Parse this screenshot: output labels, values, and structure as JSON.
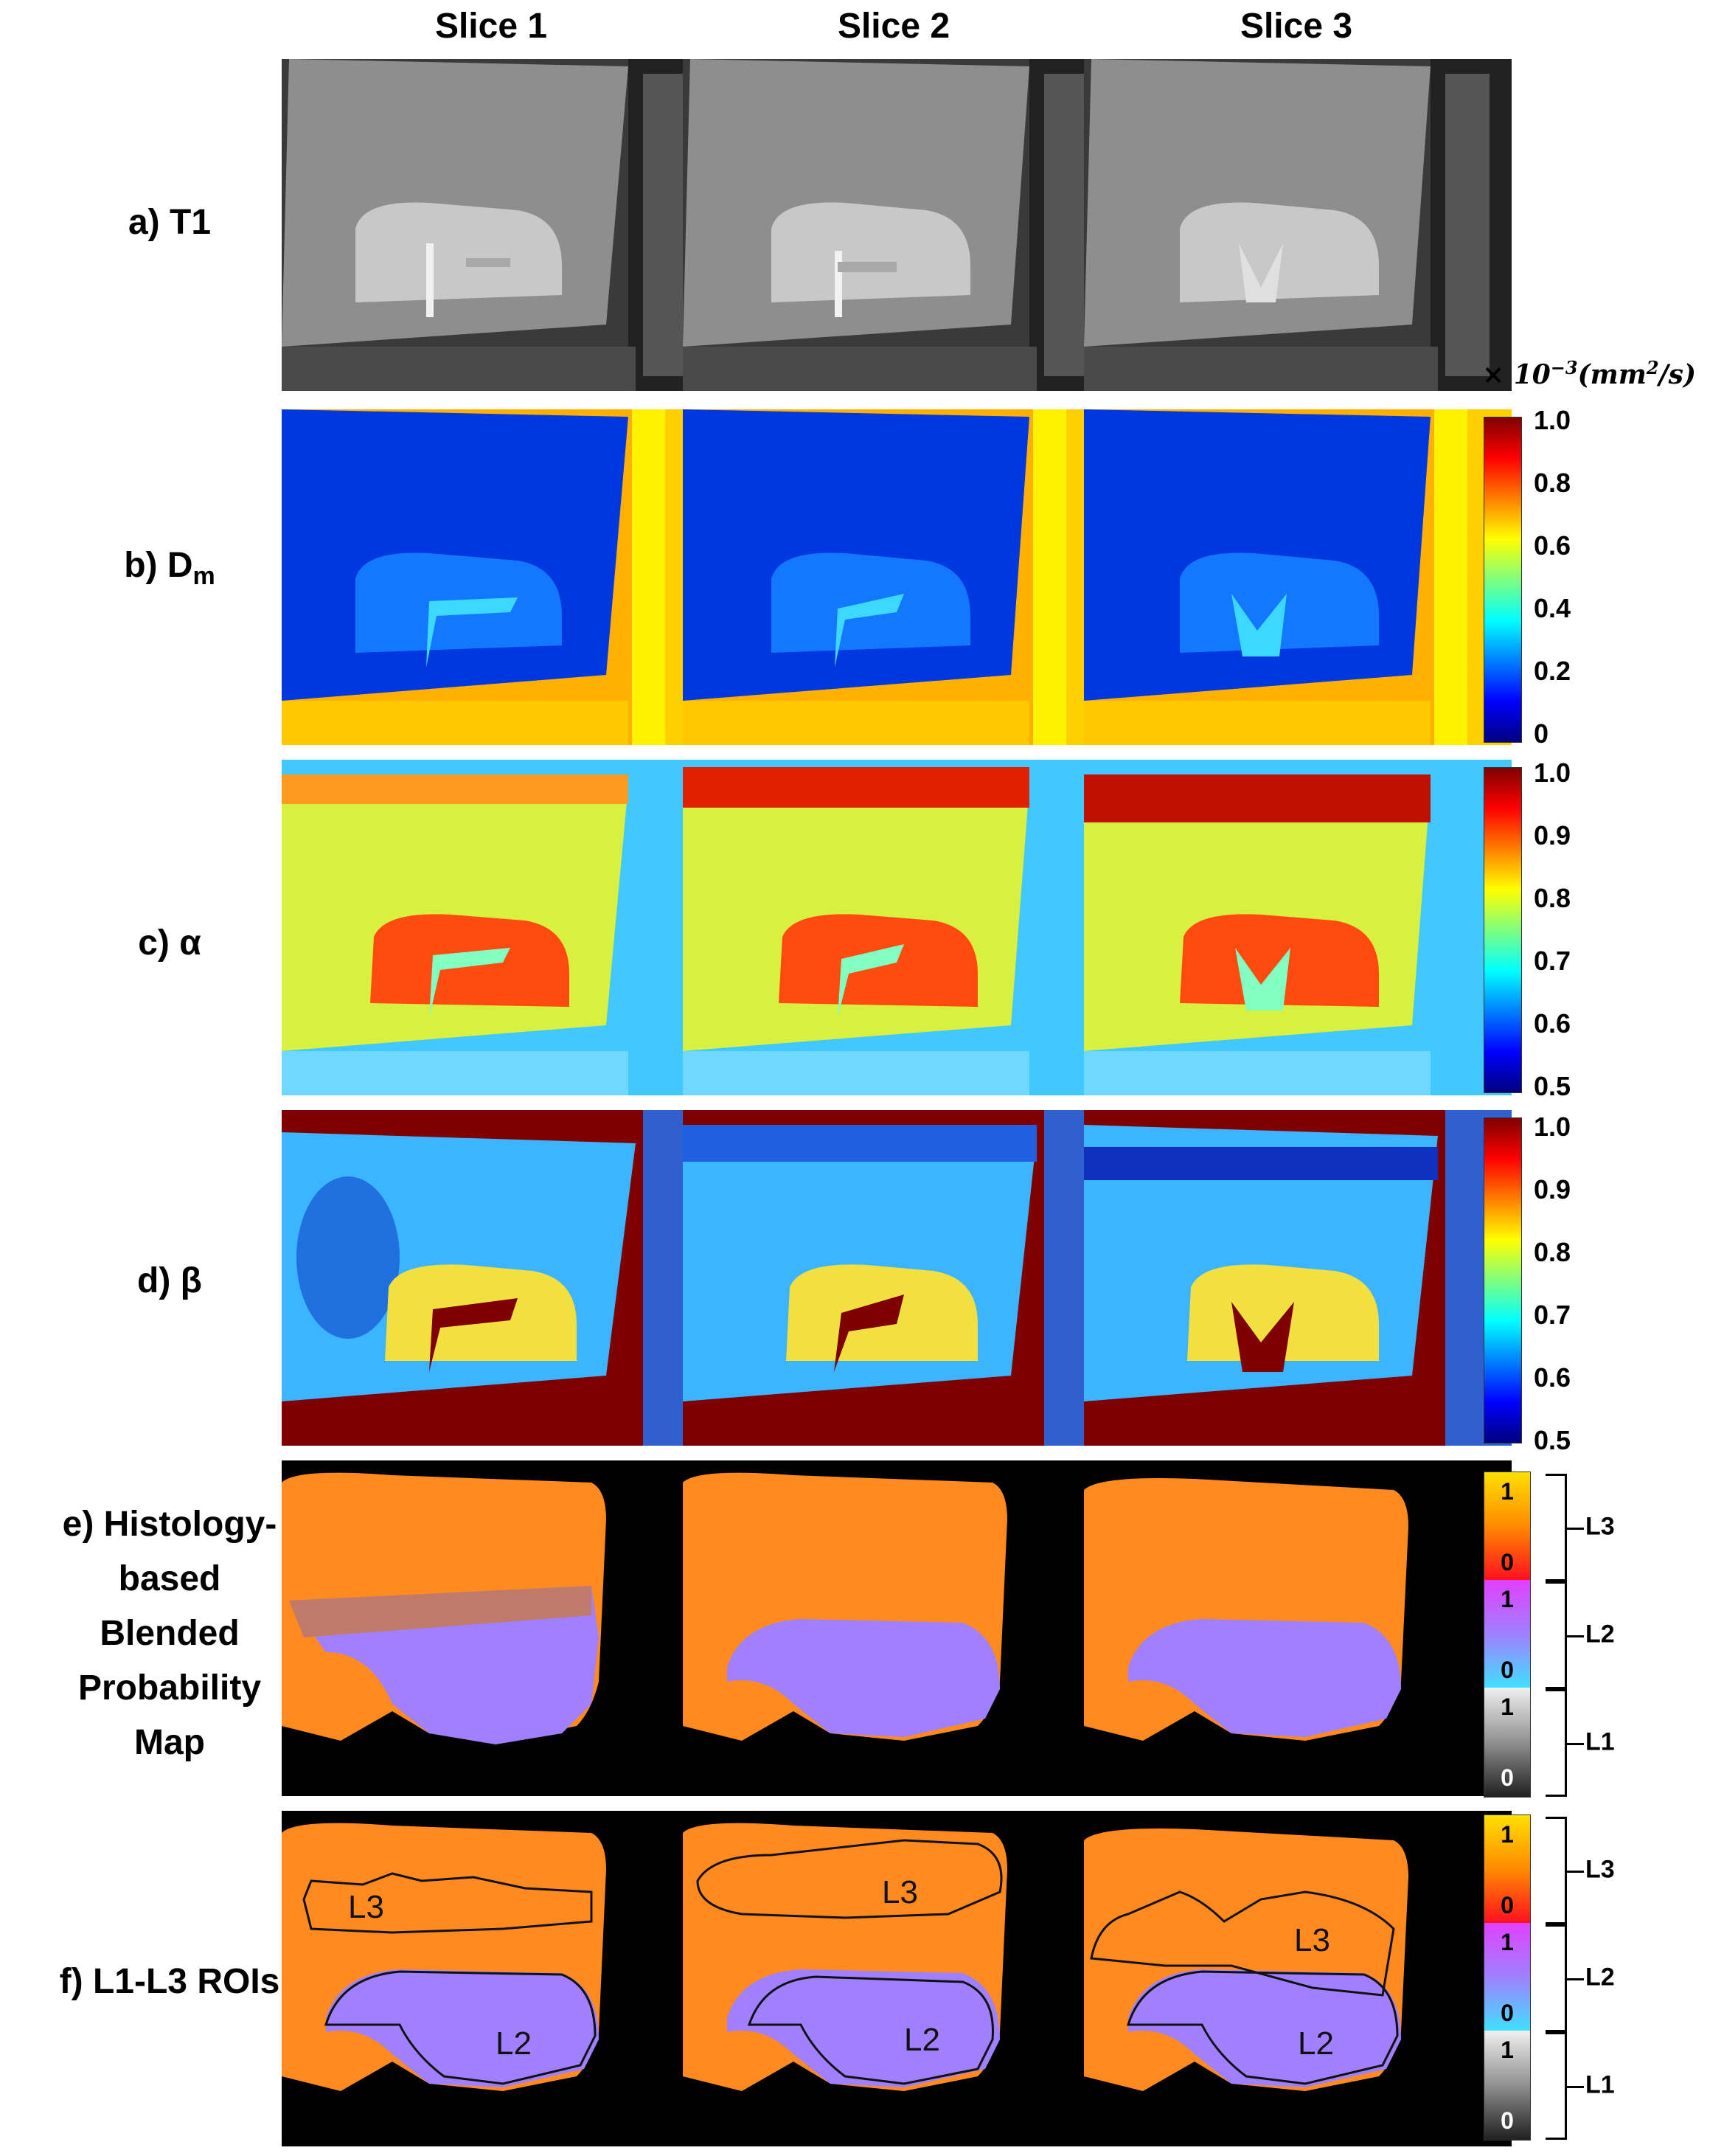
{
  "columns": [
    "Slice 1",
    "Slice 2",
    "Slice 3"
  ],
  "rows": {
    "a": {
      "prefix": "a) T1"
    },
    "b": {
      "prefix": "b) D",
      "sub": "m"
    },
    "c": {
      "prefix": "c) α"
    },
    "d": {
      "prefix": "d) β"
    },
    "e": {
      "line1": "e) Histology-",
      "line2": "based",
      "line3": "Blended",
      "line4": "Probability",
      "line5": "Map"
    },
    "f": {
      "prefix": "f) L1-L3 ROIs"
    }
  },
  "colorbars": {
    "unit": {
      "times": "× 10",
      "exp": "−3",
      "rest": "(mm",
      "exp2": "2",
      "tail": "/s)"
    },
    "dm_ticks": [
      "1.0",
      "0.8",
      "0.6",
      "0.4",
      "0.2",
      "0"
    ],
    "alpha_ticks": [
      "1.0",
      "0.9",
      "0.8",
      "0.7",
      "0.6",
      "0.5"
    ],
    "beta_ticks": [
      "1.0",
      "0.9",
      "0.8",
      "0.7",
      "0.6",
      "0.5"
    ],
    "jet_colors": [
      "#00007f",
      "#0000ff",
      "#007fff",
      "#00ffff",
      "#7fff7f",
      "#ffff00",
      "#ff7f00",
      "#ff0000",
      "#7f0000"
    ]
  },
  "probability_legend": {
    "L3": {
      "name": "L3",
      "top": "1",
      "bottom": "0"
    },
    "L2": {
      "name": "L2",
      "top": "1",
      "bottom": "0"
    },
    "L1": {
      "name": "L1",
      "top": "1",
      "bottom": "0"
    }
  },
  "roi_labels": {
    "l3": "L3",
    "l2": "L2"
  }
}
